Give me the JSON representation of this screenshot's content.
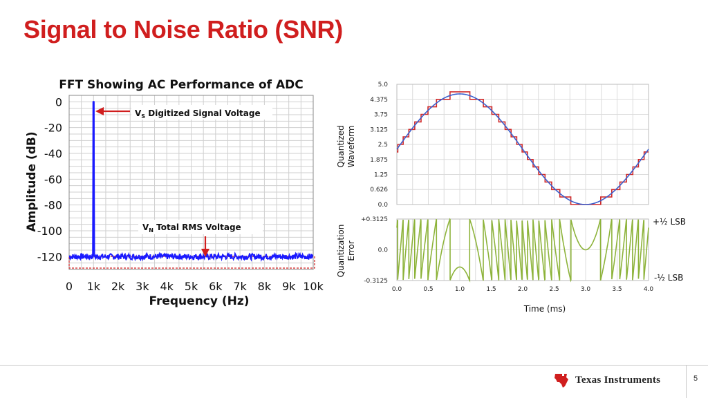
{
  "slide": {
    "title": "Signal to Noise Ratio (SNR)",
    "page_number": "5",
    "logo_text": "Texas Instruments",
    "brand_color": "#d01e1e"
  },
  "chart_data": [
    {
      "type": "line",
      "title": "FFT Showing AC Performance of ADC",
      "xlabel": "Frequency (Hz)",
      "ylabel": "Amplitude (dB)",
      "xlim": [
        0,
        10000
      ],
      "ylim": [
        -130,
        5
      ],
      "x_tick_labels": [
        "0",
        "1k",
        "2k",
        "3k",
        "4k",
        "5k",
        "6k",
        "7k",
        "8k",
        "9k",
        "10k"
      ],
      "y_tick_values": [
        0,
        -20,
        -40,
        -60,
        -80,
        -100,
        -120
      ],
      "y_tick_labels": [
        "0",
        "-20",
        "-40",
        "-60",
        "-80",
        "-100",
        "-120"
      ],
      "grid": true,
      "series": [
        {
          "color": "#1a1aff",
          "signal": {
            "x": 1000,
            "y": 0
          },
          "noise_floor": -120
        }
      ],
      "annotations": [
        {
          "main": "V",
          "sub": "S",
          "rest": " Digitized Signal Voltage"
        },
        {
          "main": "V",
          "sub": "N",
          "rest": " Total RMS Voltage"
        }
      ]
    },
    {
      "type": "line",
      "ylabel_lines": [
        "Quantized",
        "Waveform"
      ],
      "xlim": [
        0,
        4.0
      ],
      "ylim": [
        0,
        5.0
      ],
      "y_ticks": [
        "0.0",
        "0.626",
        "1.25",
        "1.875",
        "2.5",
        "3.125",
        "3.75",
        "4.375",
        "5.0"
      ],
      "y_tick_values": [
        0,
        0.626,
        1.25,
        1.875,
        2.5,
        3.125,
        3.75,
        4.375,
        5.0
      ],
      "grid": true,
      "series": [
        {
          "color": "#3a5fcd",
          "shape": "sine",
          "offset": 2.3,
          "amplitude": 2.3,
          "period_ms": 4.0,
          "phase_deg": 0
        },
        {
          "color": "#d02a2a",
          "shape": "quantized-staircase",
          "lsb": 0.3125
        }
      ]
    },
    {
      "type": "line",
      "ylabel_lines": [
        "Quantization",
        "Error"
      ],
      "xlabel": "Time (ms)",
      "xlim": [
        0,
        4.0
      ],
      "ylim": [
        -0.3125,
        0.3125
      ],
      "x_ticks": [
        "0.0",
        "0.5",
        "1.0",
        "1.5",
        "2.0",
        "2.5",
        "3.0",
        "3.5",
        "4.0"
      ],
      "y_ticks": [
        "+0.3125",
        "0.0",
        "-0.3125"
      ],
      "y_tick_values": [
        0.3125,
        0,
        -0.3125
      ],
      "grid": true,
      "series": [
        {
          "color": "#8db33a",
          "shape": "sawtooth-error",
          "lsb": 0.3125
        }
      ],
      "annotations": [
        "+½ LSB",
        "-½ LSB"
      ]
    }
  ]
}
